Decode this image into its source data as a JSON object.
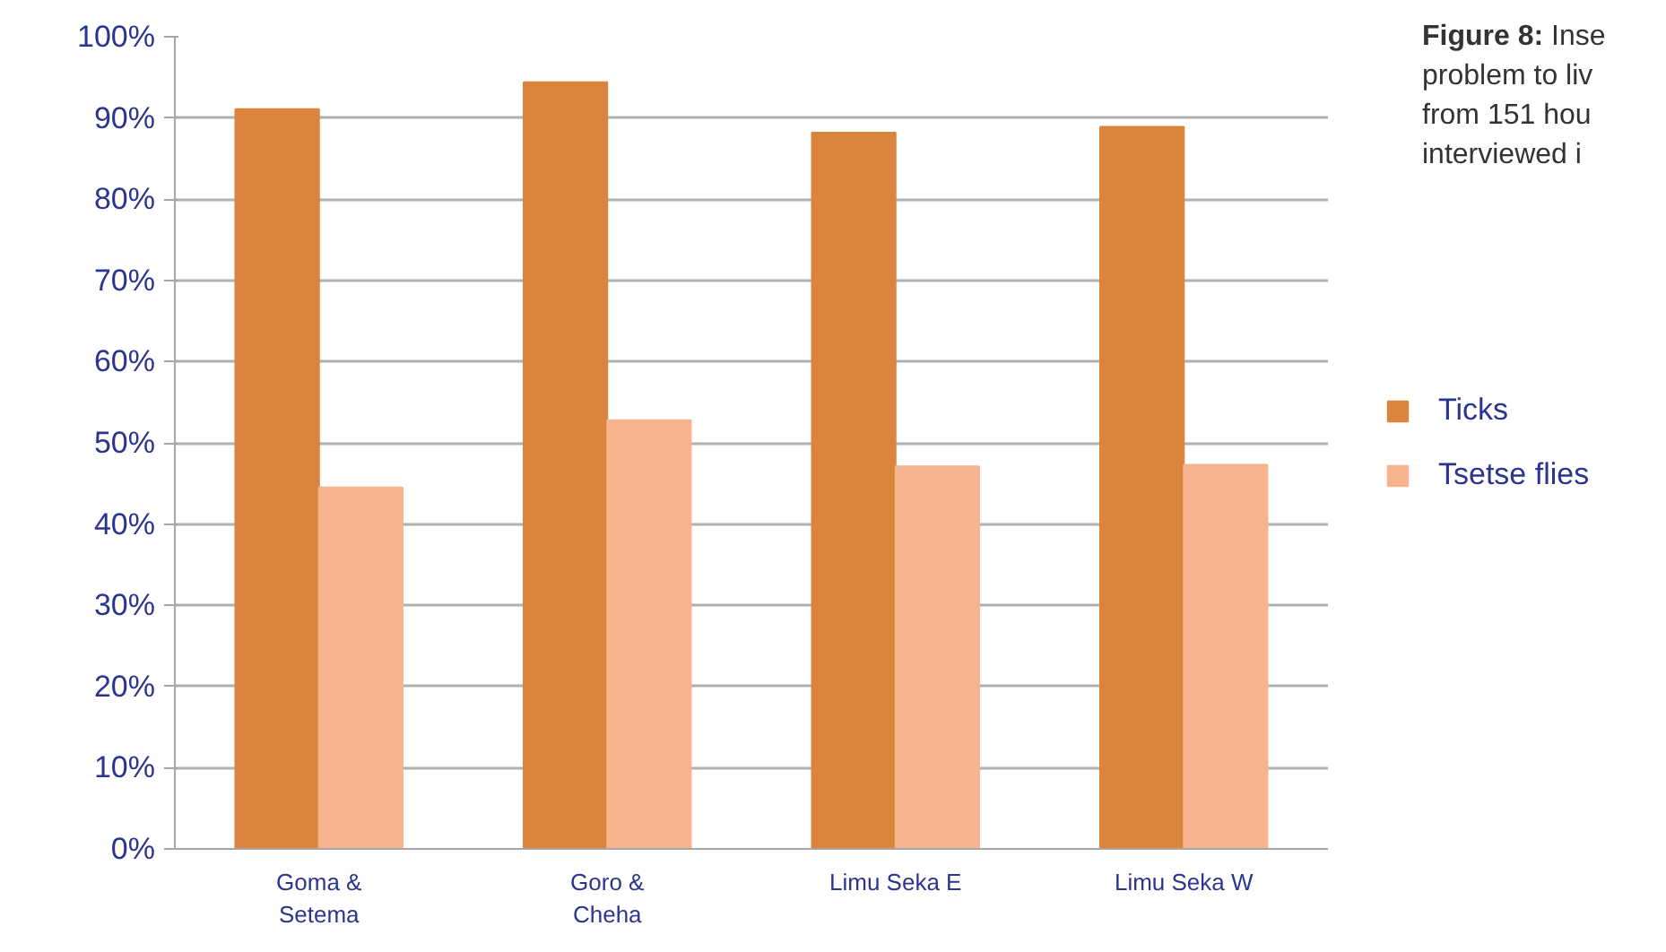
{
  "chart_data": {
    "type": "bar",
    "categories": [
      "Goma & Setema",
      "Goro & Cheha",
      "Limu Seka E",
      "Limu Seka W"
    ],
    "series": [
      {
        "name": "Ticks",
        "color": "#db843d",
        "values": [
          91.1,
          94.4,
          88.2,
          88.9
        ]
      },
      {
        "name": "Tsetse flies",
        "color": "#f8b38f",
        "values": [
          44.5,
          52.8,
          47.1,
          47.3
        ]
      }
    ],
    "ylim": [
      0,
      100
    ],
    "yticks": [
      {
        "value": 0,
        "label": "0%"
      },
      {
        "value": 10,
        "label": "10%"
      },
      {
        "value": 20,
        "label": "20%"
      },
      {
        "value": 30,
        "label": "30%"
      },
      {
        "value": 40,
        "label": "40%"
      },
      {
        "value": 50,
        "label": "50%"
      },
      {
        "value": 60,
        "label": "60%"
      },
      {
        "value": 70,
        "label": "70%"
      },
      {
        "value": 80,
        "label": "80%"
      },
      {
        "value": 90,
        "label": "90%"
      },
      {
        "value": 100,
        "label": "100%"
      }
    ],
    "grid": "y",
    "legend": "right",
    "annotations": [
      "Figure 8: Inse\nproblem to liv\nfrom 151 hou\ninterviewed i"
    ]
  }
}
